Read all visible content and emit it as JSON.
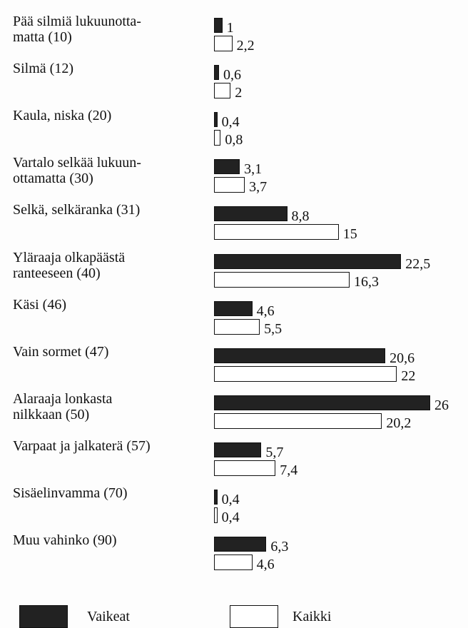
{
  "chart_data": {
    "type": "bar",
    "orientation": "horizontal",
    "categories": [
      "Pää silmiä lukuunotta-\nmatta (10)",
      "Silmä (12)",
      "Kaula, niska (20)",
      "Vartalo selkää lukuun-\nottamatta (30)",
      "Selkä, selkäranka (31)",
      "Yläraaja olkapäästä\nranteeseen (40)",
      "Käsi (46)",
      "Vain sormet (47)",
      "Alaraaja lonkasta\nnilkkaan (50)",
      "Varpaat ja jalkaterä (57)",
      "Sisäelinvamma (70)",
      "Muu vahinko (90)"
    ],
    "series": [
      {
        "name": "Vaikeat",
        "color": "#222222",
        "values": [
          1,
          0.6,
          0.4,
          3.1,
          8.8,
          22.5,
          4.6,
          20.6,
          26,
          5.7,
          0.4,
          6.3
        ],
        "value_labels": [
          "1",
          "0,6",
          "0,4",
          "3,1",
          "8,8",
          "22,5",
          "4,6",
          "20,6",
          "26",
          "5,7",
          "0,4",
          "6,3"
        ]
      },
      {
        "name": "Kaikki",
        "color": "#ffffff",
        "values": [
          2.2,
          2,
          0.8,
          3.7,
          15,
          16.3,
          5.5,
          22,
          20.2,
          7.4,
          0.4,
          4.6
        ],
        "value_labels": [
          "2,2",
          "2",
          "0,8",
          "3,7",
          "15",
          "16,3",
          "5,5",
          "22",
          "20,2",
          "7,4",
          "0,4",
          "4,6"
        ]
      }
    ],
    "legend": "bottom"
  }
}
